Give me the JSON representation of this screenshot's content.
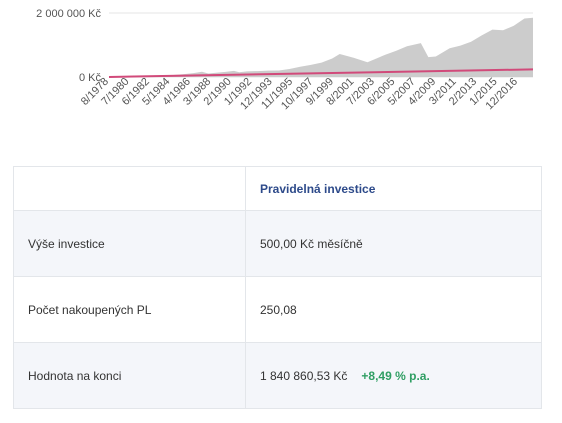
{
  "chart_data": {
    "type": "area",
    "y_tick_labels": [
      "2 000 000 Kč",
      "0 Kč"
    ],
    "y_ticks": [
      2000000,
      0
    ],
    "ylim": [
      0,
      2000000
    ],
    "x_tick_labels": [
      "8/1978",
      "7/1980",
      "6/1982",
      "5/1984",
      "4/1986",
      "3/1988",
      "2/1990",
      "1/1992",
      "12/1993",
      "11/1995",
      "10/1997",
      "9/1999",
      "8/2001",
      "7/2003",
      "6/2005",
      "5/2007",
      "4/2009",
      "3/2011",
      "2/2013",
      "1/2015",
      "12/2016"
    ],
    "grid": "horizontal",
    "legend": "none",
    "series": [
      {
        "kind": "area",
        "color": "#cccccc",
        "x": [
          1978.6,
          1979.5,
          1980.5,
          1981.5,
          1982.5,
          1983.5,
          1984.5,
          1985.5,
          1986.5,
          1987.3,
          1987.9,
          1988.5,
          1989.5,
          1990.3,
          1990.8,
          1991.5,
          1992.5,
          1993.5,
          1994.5,
          1995.5,
          1996.5,
          1997.5,
          1998.5,
          1999.5,
          2000.2,
          2001.5,
          2002.8,
          2003.5,
          2004.5,
          2005.5,
          2006.5,
          2007.8,
          2008.5,
          2009.2,
          2010.5,
          2011.5,
          2012.5,
          2013.5,
          2014.5,
          2015.5,
          2016.5,
          2017.5,
          2018.3
        ],
        "values": [
          0,
          5000,
          12000,
          22000,
          32000,
          45000,
          60000,
          85000,
          120000,
          165000,
          110000,
          130000,
          160000,
          190000,
          150000,
          175000,
          185000,
          200000,
          205000,
          250000,
          320000,
          380000,
          450000,
          580000,
          720000,
          600000,
          460000,
          560000,
          700000,
          820000,
          960000,
          1060000,
          620000,
          640000,
          900000,
          980000,
          1100000,
          1300000,
          1480000,
          1460000,
          1600000,
          1830000,
          1850000
        ]
      },
      {
        "kind": "line",
        "color": "#d14a7a",
        "x": [
          1978.6,
          2018.3
        ],
        "values": [
          500,
          238500
        ]
      }
    ]
  },
  "table": {
    "header": [
      "",
      "Pravidelná investice"
    ],
    "rows": [
      {
        "label": "Výše investice",
        "value": "500,00 Kč měsíčně",
        "extra": ""
      },
      {
        "label": "Počet nakoupených PL",
        "value": "250,08",
        "extra": ""
      },
      {
        "label": "Hodnota na konci",
        "value": "1 840 860,53 Kč",
        "extra": "+8,49 % p.a."
      }
    ]
  }
}
